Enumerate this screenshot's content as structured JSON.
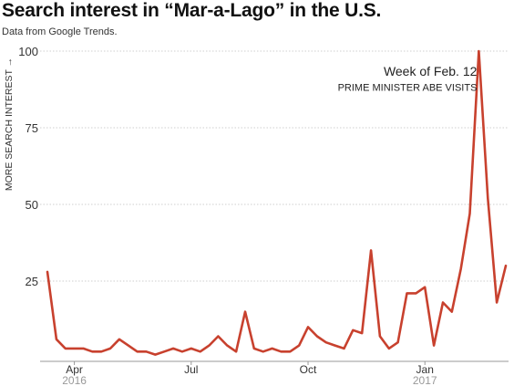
{
  "chart_data": {
    "type": "line",
    "title": "Search interest in “Mar-a-Lago” in the U.S.",
    "subtitle": "Data from Google Trends.",
    "ylabel": "MORE SEARCH INTEREST →",
    "xlabel": "",
    "ylim": [
      0,
      100
    ],
    "yticks": [
      25,
      50,
      75,
      100
    ],
    "grid": true,
    "x_ticks": [
      {
        "month": "Apr",
        "year": "2016",
        "week": 3
      },
      {
        "month": "Jul",
        "year": "",
        "week": 16
      },
      {
        "month": "Oct",
        "year": "",
        "week": 29
      },
      {
        "month": "Jan",
        "year": "2017",
        "week": 42
      }
    ],
    "series": [
      {
        "color": "#c8412e",
        "values": [
          28,
          6,
          3,
          3,
          3,
          2,
          2,
          3,
          6,
          4,
          2,
          2,
          1,
          2,
          3,
          2,
          3,
          2,
          4,
          7,
          4,
          2,
          15,
          3,
          2,
          3,
          2,
          2,
          4,
          10,
          7,
          5,
          4,
          3,
          9,
          8,
          35,
          7,
          3,
          5,
          21,
          21,
          23,
          4,
          18,
          15,
          29,
          47,
          100,
          52,
          18,
          30
        ]
      }
    ],
    "annotations": [
      {
        "text": "Week of Feb. 12",
        "week": 48,
        "y": 92
      },
      {
        "text": "PRIME MINISTER ABE VISITS",
        "week": 48,
        "y": 87
      }
    ]
  }
}
